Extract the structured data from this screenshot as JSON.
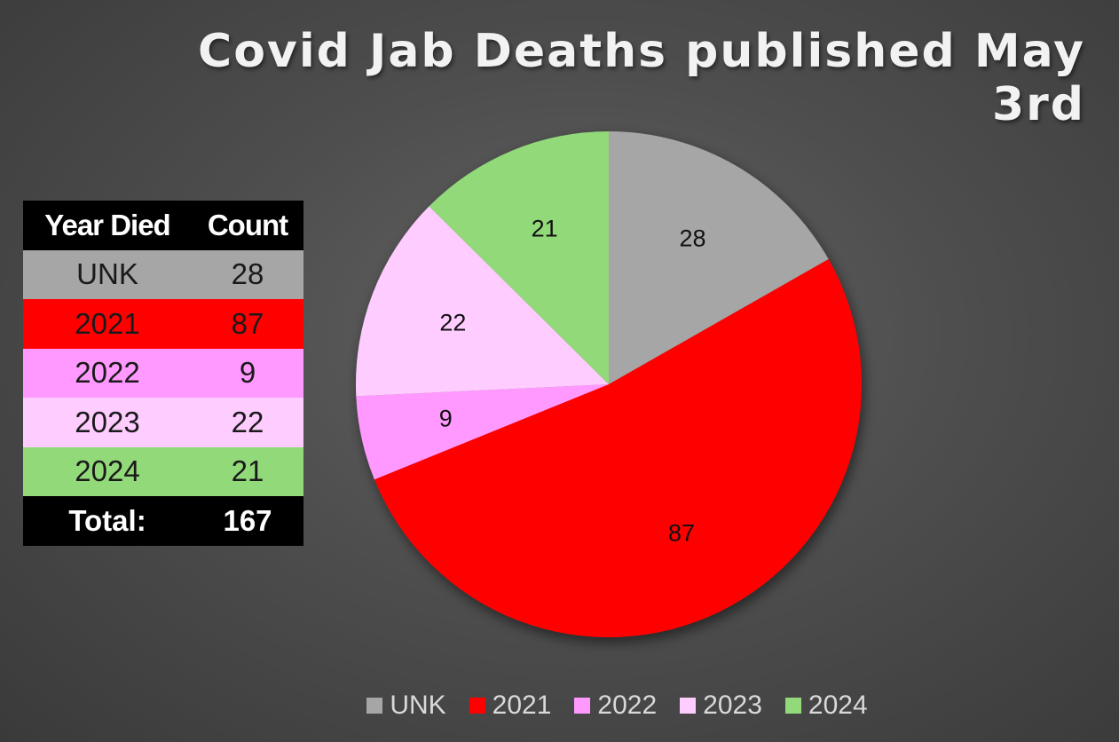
{
  "chart_data": {
    "type": "pie",
    "title": "Covid Jab Deaths published May 3rd",
    "categories": [
      "UNK",
      "2021",
      "2022",
      "2023",
      "2024"
    ],
    "values": [
      28,
      87,
      9,
      22,
      21
    ],
    "colors": [
      "#a6a6a6",
      "#ff0000",
      "#ff99ff",
      "#ffccff",
      "#92d97a"
    ],
    "legend_position": "bottom"
  },
  "table": {
    "headers": [
      "Year Died",
      "Count"
    ],
    "rows": [
      {
        "year": "UNK",
        "count": "28",
        "color": "#a6a6a6",
        "text_color": "#1a1a1a"
      },
      {
        "year": "2021",
        "count": "87",
        "color": "#ff0000",
        "text_color": "#1a1a1a"
      },
      {
        "year": "2022",
        "count": "9",
        "color": "#ff99ff",
        "text_color": "#1a1a1a"
      },
      {
        "year": "2023",
        "count": "22",
        "color": "#ffccff",
        "text_color": "#1a1a1a"
      },
      {
        "year": "2024",
        "count": "21",
        "color": "#92d97a",
        "text_color": "#1a1a1a"
      }
    ],
    "total_label": "Total:",
    "total_value": "167"
  },
  "background_color": "#4e4e4e"
}
